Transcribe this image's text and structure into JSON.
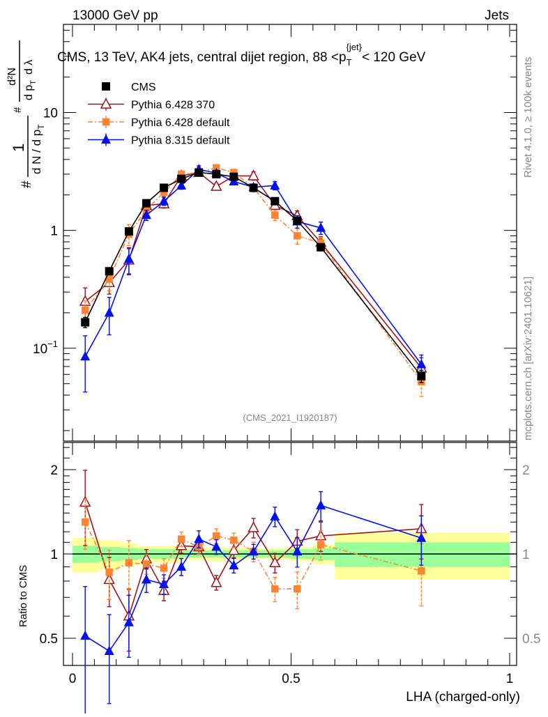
{
  "header": {
    "left": "13000 GeV pp",
    "right": "Jets"
  },
  "side": {
    "rivet": "Rivet 4.1.0, ≥ 100k events",
    "mcplots": "mcplots.cern.ch [arXiv:2401.10621]"
  },
  "colors": {
    "cms": "#000000",
    "p6_370": "#a0121e",
    "p6_def": "#ff8431",
    "p8_def": "#0010f0",
    "band_inner": "#99ff99",
    "band_outer": "#ffff99"
  },
  "chart_data": [
    {
      "type": "line",
      "title": "CMS, 13 TeV, AK4 jets, central dijet region, 88 <p",
      "title_sub": "T",
      "title_sup": "{jet}",
      "title_end": "< 120 GeV",
      "ylabel_parts": {
        "hash": "#",
        "one": "1",
        "dn": "d N / d p",
        "t": "T",
        "d2n": "d²N",
        "dpt": "d p",
        "dlam": "d λ"
      },
      "analysis_tag": "(CMS_2021_I1920187)",
      "yscale": "log",
      "ylim": [
        0.0163,
        56
      ],
      "xlim": [
        0,
        1
      ],
      "yticks": [
        {
          "v": 10,
          "label": "10"
        },
        {
          "v": 1,
          "label": "1"
        },
        {
          "v": 0.1,
          "label": "10",
          "sup": "−1"
        }
      ],
      "legend_position": "top-left",
      "x": [
        0.029,
        0.084,
        0.129,
        0.169,
        0.209,
        0.249,
        0.289,
        0.329,
        0.369,
        0.414,
        0.463,
        0.514,
        0.568,
        0.798
      ],
      "series": [
        {
          "name": "CMS",
          "key": "cms",
          "marker": "square",
          "values": [
            0.166,
            0.45,
            0.98,
            1.7,
            2.3,
            2.74,
            3.1,
            3.0,
            2.85,
            2.3,
            1.77,
            1.21,
            0.72,
            0.058
          ],
          "rel_err": [
            0.1,
            0.06,
            0.05,
            0.05,
            0.05,
            0.05,
            0.04,
            0.04,
            0.04,
            0.05,
            0.05,
            0.06,
            0.07,
            0.12
          ]
        },
        {
          "name": "Pythia 6.428 370",
          "key": "p6_370",
          "marker": "open-triangle",
          "values": [
            0.25,
            0.36,
            0.56,
            1.63,
            1.68,
            2.9,
            3.1,
            2.36,
            2.9,
            2.9,
            1.63,
            1.33,
            0.79,
            0.068
          ],
          "rel_err": [
            0.3,
            0.2,
            0.25,
            0.08,
            0.08,
            0.06,
            0.06,
            0.06,
            0.06,
            0.08,
            0.08,
            0.1,
            0.12,
            0.22
          ]
        },
        {
          "name": "Pythia 6.428 default",
          "key": "p6_def",
          "marker": "small-square",
          "dashed": true,
          "values": [
            0.21,
            0.385,
            0.93,
            1.5,
            2.1,
            3.0,
            3.1,
            3.4,
            3.1,
            2.3,
            1.35,
            0.9,
            0.78,
            0.052
          ],
          "rel_err": [
            0.2,
            0.2,
            0.2,
            0.08,
            0.08,
            0.06,
            0.06,
            0.06,
            0.06,
            0.08,
            0.1,
            0.15,
            0.12,
            0.25
          ]
        },
        {
          "name": "Pythia 8.315 default",
          "key": "p8_def",
          "marker": "triangle",
          "values": [
            0.085,
            0.2,
            0.57,
            1.35,
            1.77,
            2.4,
            3.3,
            3.06,
            2.6,
            2.33,
            2.4,
            1.19,
            1.05,
            0.073
          ],
          "rel_err": [
            0.5,
            0.35,
            0.25,
            0.1,
            0.08,
            0.07,
            0.07,
            0.06,
            0.06,
            0.06,
            0.08,
            0.12,
            0.12,
            0.2
          ]
        }
      ]
    },
    {
      "type": "line",
      "ylabel": "Ratio to CMS",
      "xlabel": "LHA (charged-only)",
      "yscale": "log",
      "ylim": [
        0.4,
        2.5
      ],
      "xlim": [
        0,
        1
      ],
      "yticks": [
        {
          "v": 2,
          "label": "2"
        },
        {
          "v": 1,
          "label": "1"
        },
        {
          "v": 0.5,
          "label": "0.5"
        }
      ],
      "xticks": [
        {
          "v": 0,
          "label": "0"
        },
        {
          "v": 0.5,
          "label": "0.5"
        },
        {
          "v": 1,
          "label": "1"
        }
      ],
      "band_edges": [
        0,
        0.06,
        0.11,
        0.15,
        0.19,
        0.25,
        0.31,
        0.35,
        0.4,
        0.45,
        0.5,
        0.55,
        0.6,
        1.0
      ],
      "band_outer": [
        0.14,
        0.12,
        0.09,
        0.07,
        0.07,
        0.05,
        0.06,
        0.05,
        0.04,
        0.05,
        0.06,
        0.08,
        0.19
      ],
      "band_inner": [
        0.07,
        0.06,
        0.05,
        0.04,
        0.04,
        0.03,
        0.03,
        0.03,
        0.03,
        0.03,
        0.04,
        0.05,
        0.1
      ],
      "series": [
        {
          "name": "Pythia 6.428 370",
          "key": "p6_370",
          "marker": "open-triangle",
          "values": [
            1.53,
            0.81,
            0.6,
            0.96,
            0.74,
            1.07,
            1.06,
            0.79,
            1.03,
            1.24,
            0.93,
            1.11,
            1.16,
            1.23
          ]
        },
        {
          "name": "Pythia 6.428 default",
          "key": "p6_def",
          "marker": "small-square",
          "dashed": true,
          "values": [
            1.3,
            0.86,
            0.93,
            0.92,
            0.89,
            1.13,
            1.06,
            1.16,
            1.12,
            1.02,
            0.75,
            0.75,
            1.08,
            0.87
          ]
        },
        {
          "name": "Pythia 8.315 default",
          "key": "p8_def",
          "marker": "triangle",
          "values": [
            0.51,
            0.45,
            0.57,
            0.81,
            0.78,
            0.9,
            1.13,
            1.06,
            0.91,
            1.02,
            1.36,
            1.02,
            1.49,
            1.14
          ]
        }
      ]
    }
  ]
}
